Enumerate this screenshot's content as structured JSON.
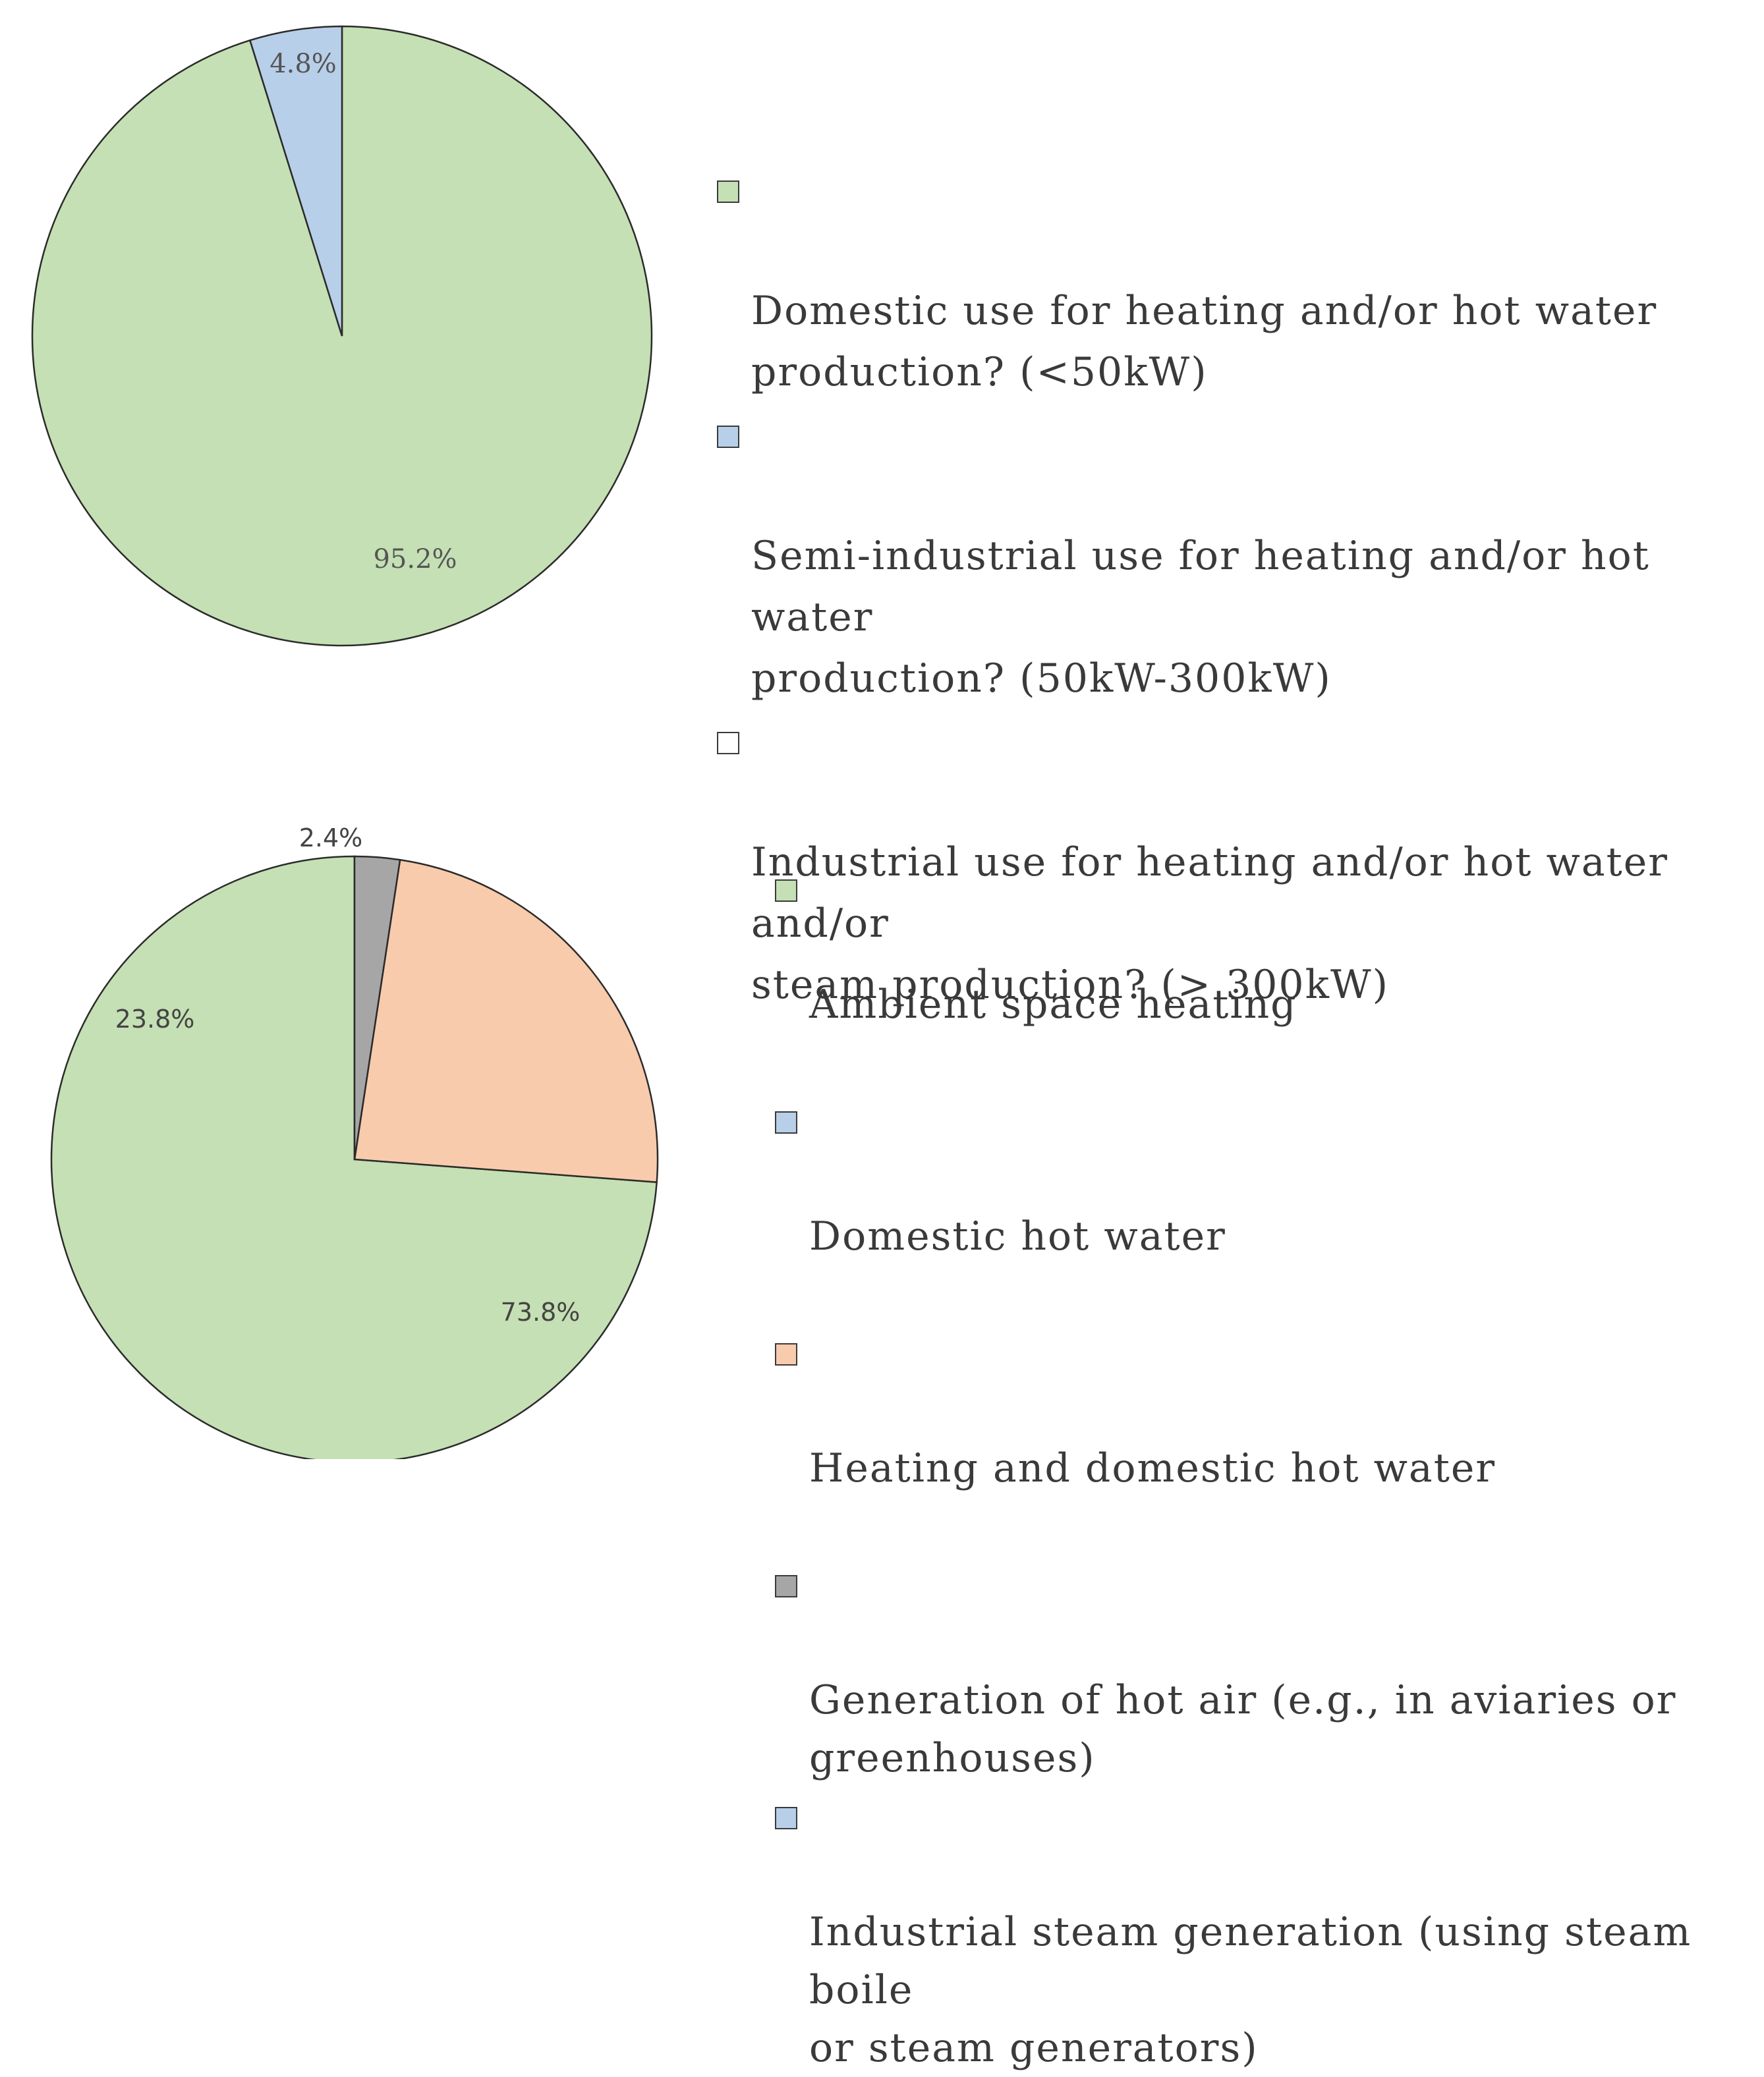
{
  "colors": {
    "green": "#c5e0b4",
    "blue": "#b8cfe9",
    "orange": "#f8cbad",
    "gray": "#a6a6a6",
    "white": "#ffffff",
    "outline": "#2b2b2b"
  },
  "chart_data": [
    {
      "type": "pie",
      "slices": [
        {
          "label": "Domestic use for heating and/or hot water production? (<50kW)",
          "value": 95.2,
          "value_label": "95.2%",
          "color": "#c5e0b4"
        },
        {
          "label": "Semi-industrial use for heating and/or hot water production? (50kW-300kW)",
          "value": 4.8,
          "value_label": "4.8%",
          "color": "#b8cfe9"
        },
        {
          "label": "Industrial use for heating and/or hot water and/or steam production? (> 300kW)",
          "value": 0,
          "value_label": "",
          "color": "#ffffff"
        }
      ],
      "legend": [
        {
          "text": "Domestic use for heating and/or hot water\nproduction? (<50kW)",
          "color": "#c5e0b4"
        },
        {
          "text": "Semi-industrial use for heating and/or hot water\nproduction? (50kW-300kW)",
          "color": "#b8cfe9"
        },
        {
          "text": "Industrial use for heating and/or hot water and/or\nsteam production? (> 300kW)",
          "color": "#ffffff"
        }
      ],
      "legend_position": "right"
    },
    {
      "type": "pie",
      "slices": [
        {
          "label": "Ambient space heating",
          "value": 73.8,
          "value_label": "73.8%",
          "color": "#c5e0b4"
        },
        {
          "label": "Domestic hot water",
          "value": 0,
          "value_label": "",
          "color": "#b8cfe9"
        },
        {
          "label": "Heating and domestic hot water",
          "value": 23.8,
          "value_label": "23.8%",
          "color": "#f8cbad"
        },
        {
          "label": "Generation of hot air (e.g., in aviaries or greenhouses)",
          "value": 2.4,
          "value_label": "2.4%",
          "color": "#a6a6a6"
        },
        {
          "label": "Industrial steam generation (using steam boile or steam generators)",
          "value": 0,
          "value_label": "",
          "color": "#b8cfe9"
        }
      ],
      "legend": [
        {
          "text": "Ambient space heating",
          "color": "#c5e0b4"
        },
        {
          "text": "Domestic hot water",
          "color": "#b8cfe9"
        },
        {
          "text": "Heating and domestic hot water",
          "color": "#f8cbad"
        },
        {
          "text": "Generation of hot air (e.g., in aviaries or\ngreenhouses)",
          "color": "#a6a6a6"
        },
        {
          "text": "Industrial steam generation (using steam boile\nor steam generators)",
          "color": "#b8cfe9"
        }
      ],
      "legend_position": "right"
    }
  ]
}
